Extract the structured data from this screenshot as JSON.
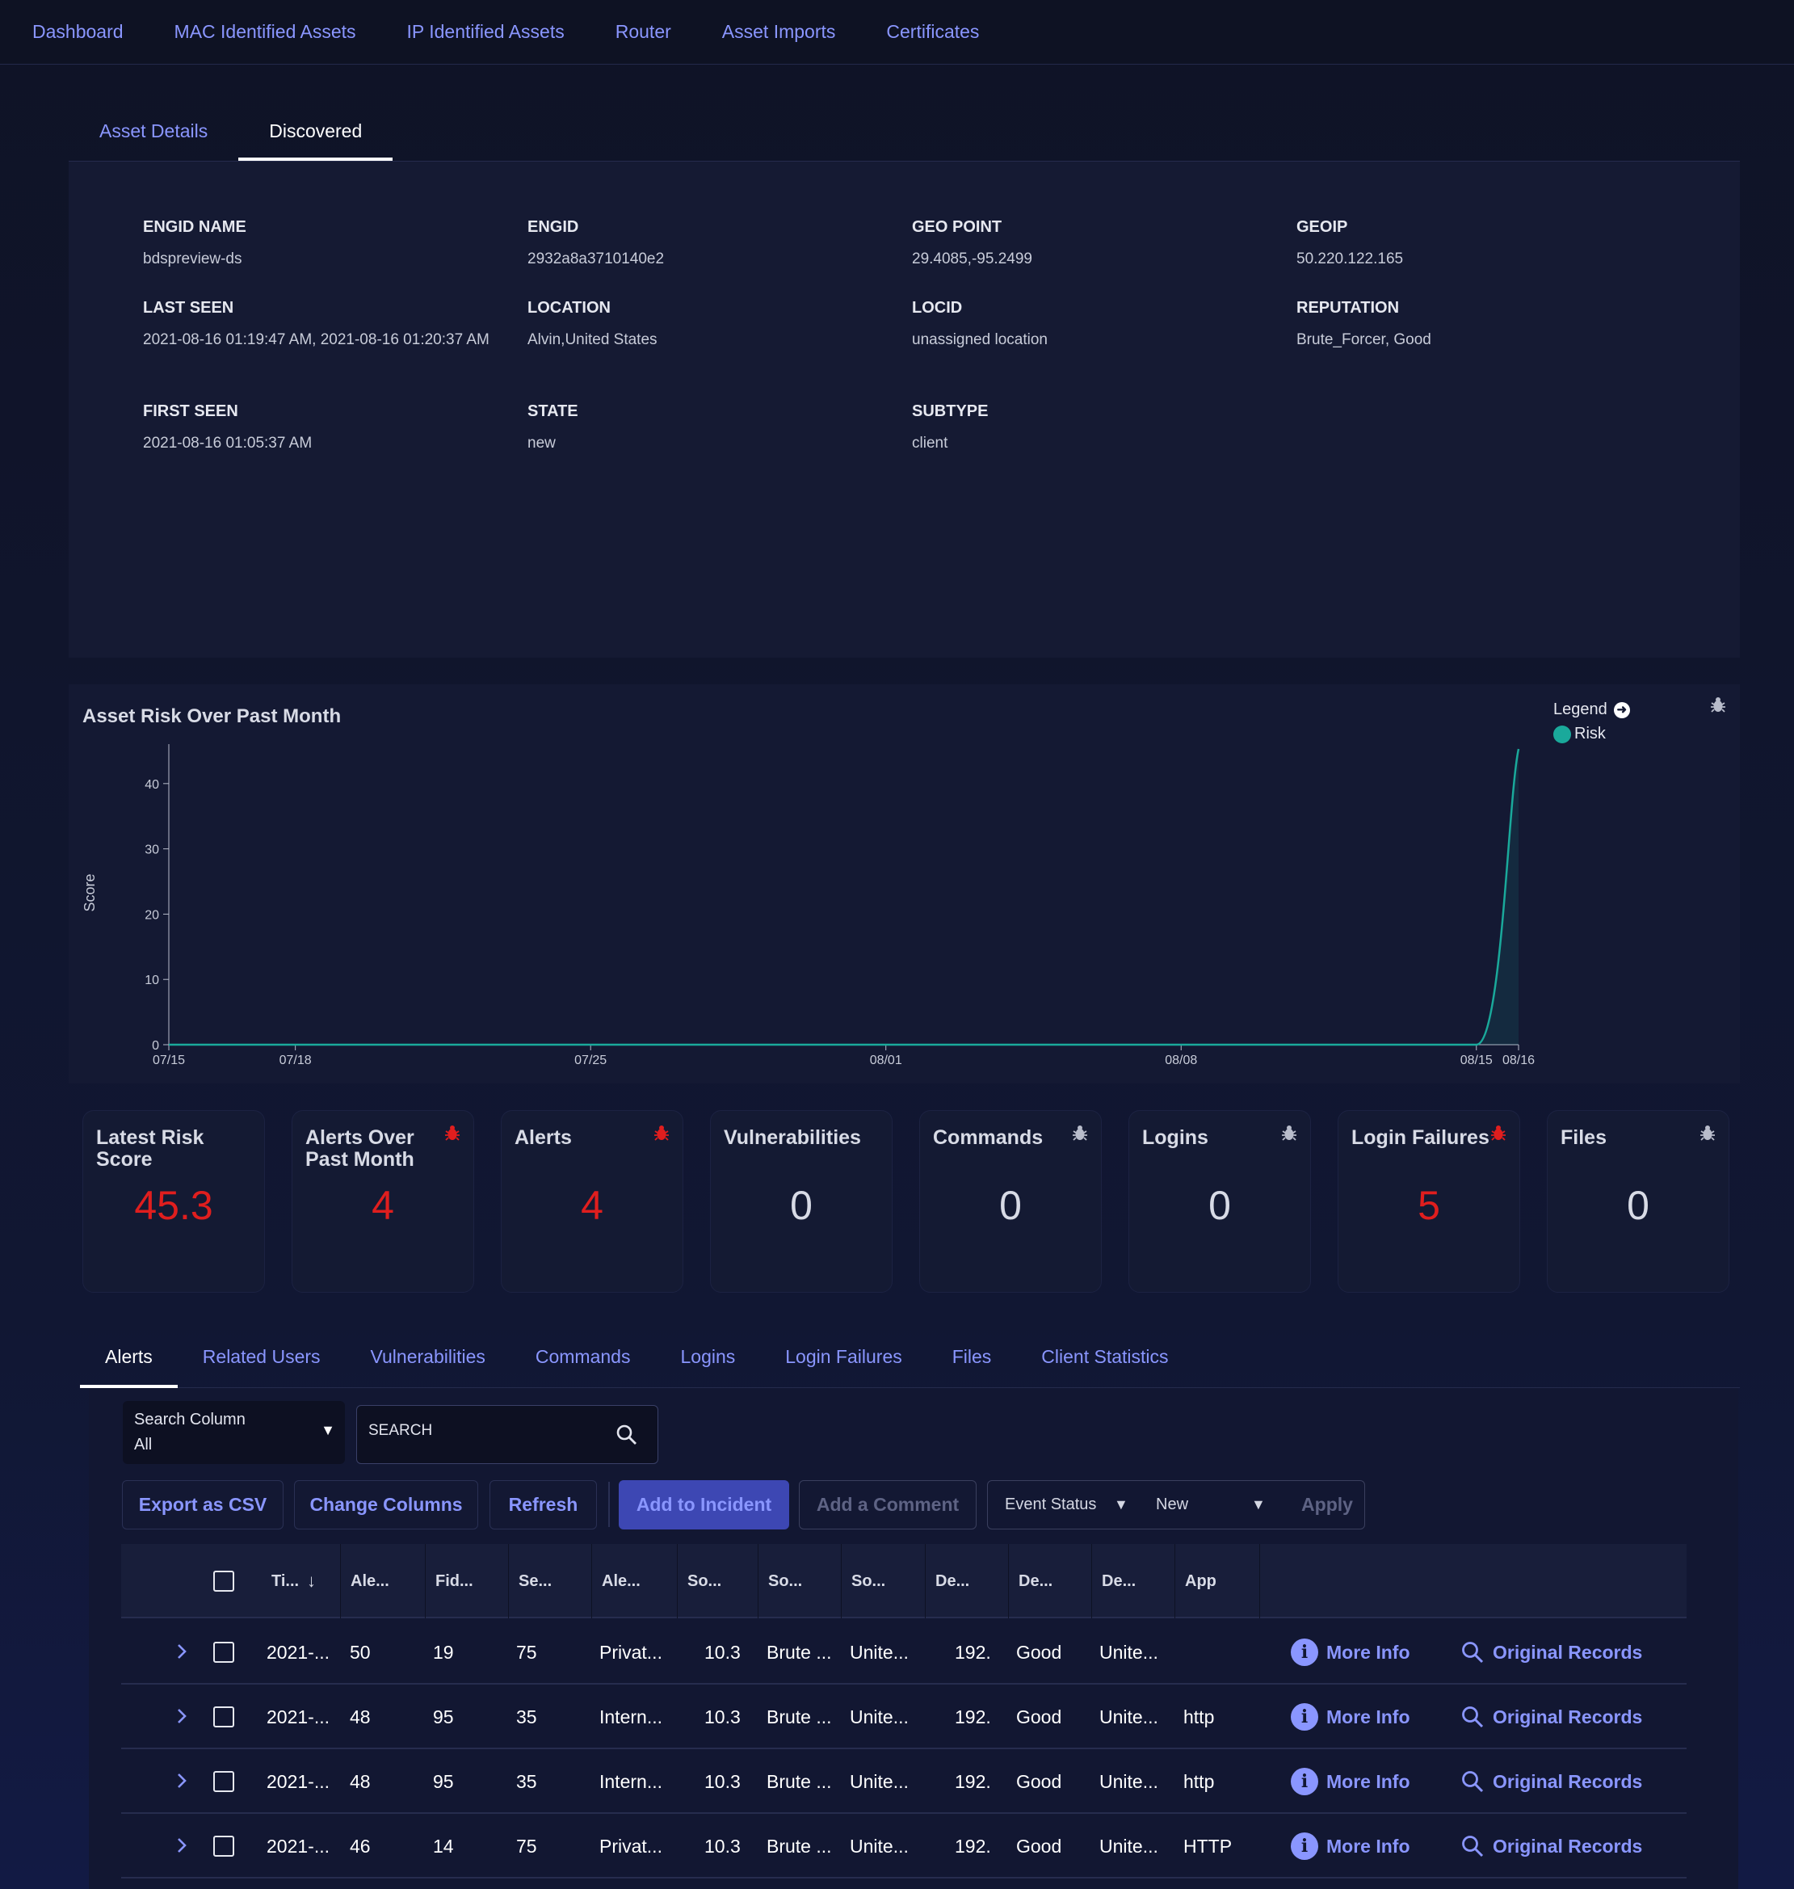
{
  "top_nav": [
    "Dashboard",
    "MAC Identified Assets",
    "IP Identified Assets",
    "Router",
    "Asset Imports",
    "Certificates"
  ],
  "sub_tabs": [
    {
      "label": "Asset Details",
      "active": false
    },
    {
      "label": "Discovered",
      "active": true
    }
  ],
  "details": {
    "engid_name": {
      "label": "ENGID NAME",
      "value": "bdspreview-ds"
    },
    "engid": {
      "label": "ENGID",
      "value": "2932a8a3710140e2"
    },
    "geo_point": {
      "label": "GEO POINT",
      "value": "29.4085,-95.2499"
    },
    "geoip": {
      "label": "GEOIP",
      "value": "50.220.122.165"
    },
    "last_seen": {
      "label": "LAST SEEN",
      "value": "2021-08-16 01:19:47 AM, 2021-08-16 01:20:37 AM"
    },
    "location": {
      "label": "LOCATION",
      "value": "Alvin,United States"
    },
    "locid": {
      "label": "LOCID",
      "value": "unassigned location"
    },
    "reputation": {
      "label": "REPUTATION",
      "value": "Brute_Forcer, Good"
    },
    "first_seen": {
      "label": "FIRST SEEN",
      "value": "2021-08-16 01:05:37 AM"
    },
    "state": {
      "label": "STATE",
      "value": "new"
    },
    "subtype": {
      "label": "SUBTYPE",
      "value": "client"
    }
  },
  "chart_data": {
    "type": "area",
    "title": "Asset Risk Over Past Month",
    "ylabel": "Score",
    "xlabel": "",
    "ylim": [
      0,
      45.3
    ],
    "yticks": [
      0,
      10,
      20,
      30,
      40
    ],
    "xticks": [
      "07/15",
      "07/18",
      "07/25",
      "08/01",
      "08/08",
      "08/15",
      "08/16"
    ],
    "legend_title": "Legend",
    "legend_position": "top-right",
    "grid": false,
    "series": [
      {
        "name": "Risk",
        "color": "#1aa99b",
        "x": [
          "07/15",
          "08/15",
          "08/16"
        ],
        "values": [
          0,
          0,
          45.3
        ]
      }
    ]
  },
  "stats": [
    {
      "title": "Latest Risk Score",
      "value": "45.3",
      "color": "#e01e1e",
      "bug": "none"
    },
    {
      "title": "Alerts Over Past Month",
      "value": "4",
      "color": "#e01e1e",
      "bug": "red"
    },
    {
      "title": "Alerts",
      "value": "4",
      "color": "#e01e1e",
      "bug": "red"
    },
    {
      "title": "Vulnerabilities",
      "value": "0",
      "color": "#d8dbe6",
      "bug": "none"
    },
    {
      "title": "Commands",
      "value": "0",
      "color": "#d8dbe6",
      "bug": "grey"
    },
    {
      "title": "Logins",
      "value": "0",
      "color": "#d8dbe6",
      "bug": "grey"
    },
    {
      "title": "Login Failures",
      "value": "5",
      "color": "#e01e1e",
      "bug": "red"
    },
    {
      "title": "Files",
      "value": "0",
      "color": "#d8dbe6",
      "bug": "grey"
    }
  ],
  "bottom_tabs": [
    {
      "label": "Alerts",
      "active": true
    },
    {
      "label": "Related Users",
      "active": false
    },
    {
      "label": "Vulnerabilities",
      "active": false
    },
    {
      "label": "Commands",
      "active": false
    },
    {
      "label": "Logins",
      "active": false
    },
    {
      "label": "Login Failures",
      "active": false
    },
    {
      "label": "Files",
      "active": false
    },
    {
      "label": "Client Statistics",
      "active": false
    }
  ],
  "search": {
    "column_label": "Search Column",
    "column_value": "All",
    "placeholder": "SEARCH"
  },
  "actions": {
    "export": "Export as CSV",
    "change_columns": "Change Columns",
    "refresh": "Refresh",
    "add_to_incident": "Add to Incident",
    "add_comment": "Add a Comment",
    "event_status_label": "Event Status",
    "event_status_value": "New",
    "apply": "Apply"
  },
  "table": {
    "columns": [
      "Ti...",
      "Ale...",
      "Fid...",
      "Se...",
      "Ale...",
      "So...",
      "So...",
      "So...",
      "De...",
      "De...",
      "De...",
      "App"
    ],
    "more_info": "More Info",
    "original_records": "Original Records",
    "rows": [
      [
        "2021-...",
        "50",
        "19",
        "75",
        "Privat...",
        "10.3",
        "Brute ...",
        "Unite...",
        "192.",
        "Good",
        "Unite...",
        ""
      ],
      [
        "2021-...",
        "48",
        "95",
        "35",
        "Intern...",
        "10.3",
        "Brute ...",
        "Unite...",
        "192.",
        "Good",
        "Unite...",
        "http"
      ],
      [
        "2021-...",
        "48",
        "95",
        "35",
        "Intern...",
        "10.3",
        "Brute ...",
        "Unite...",
        "192.",
        "Good",
        "Unite...",
        "http"
      ],
      [
        "2021-...",
        "46",
        "14",
        "75",
        "Privat...",
        "10.3",
        "Brute ...",
        "Unite...",
        "192.",
        "Good",
        "Unite...",
        "HTTP"
      ]
    ]
  }
}
